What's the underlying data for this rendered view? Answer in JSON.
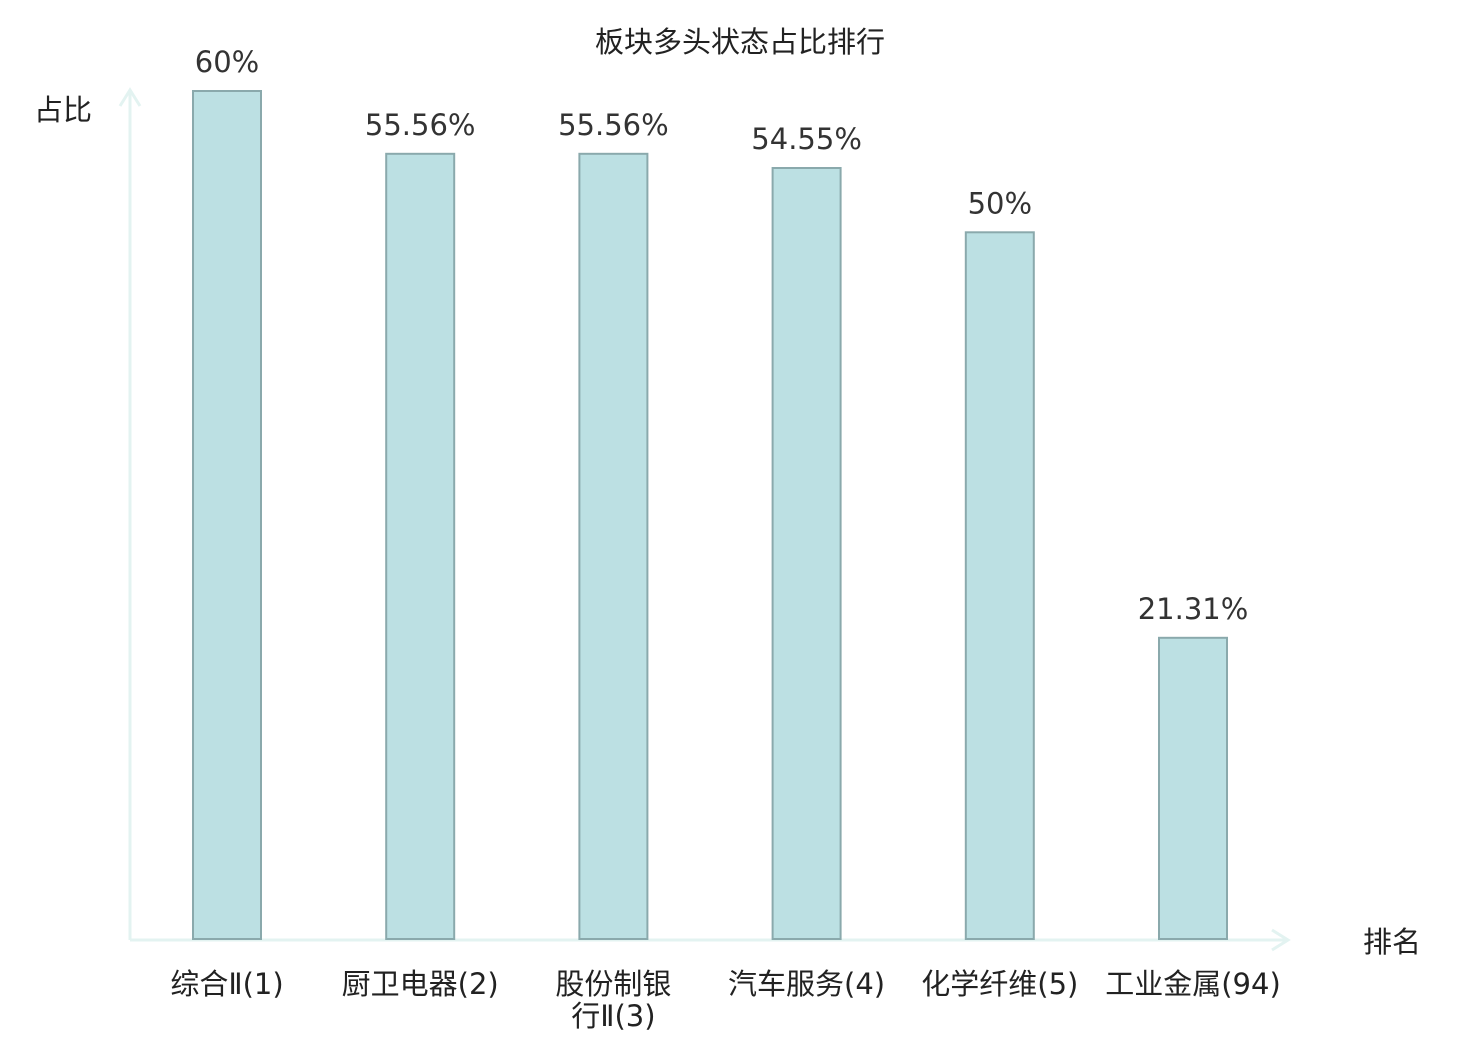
{
  "chart_data": {
    "type": "bar",
    "title": "板块多头状态占比排行",
    "xlabel": "排名",
    "ylabel": "占比",
    "categories": [
      [
        "综合Ⅱ(1)"
      ],
      [
        "厨卫电器(2)"
      ],
      [
        "股份制银",
        "行Ⅱ(3)"
      ],
      [
        "汽车服务(4)"
      ],
      [
        "化学纤维(5)"
      ],
      [
        "工业金属(94)"
      ]
    ],
    "values": [
      60,
      55.56,
      55.56,
      54.55,
      50,
      21.31
    ],
    "value_labels": [
      "60%",
      "55.56%",
      "55.56%",
      "54.55%",
      "50%",
      "21.31%"
    ],
    "ylim": [
      0,
      60
    ],
    "grid": false,
    "legend": "none",
    "highlight_index": 5,
    "colors": {
      "bar_fill": "#bce0e3",
      "bar_stroke": "#8aa9ac",
      "axis": "#e3f3f1",
      "label": "#222222",
      "highlight_label": "#e0221b",
      "value_label": "#333333"
    }
  }
}
